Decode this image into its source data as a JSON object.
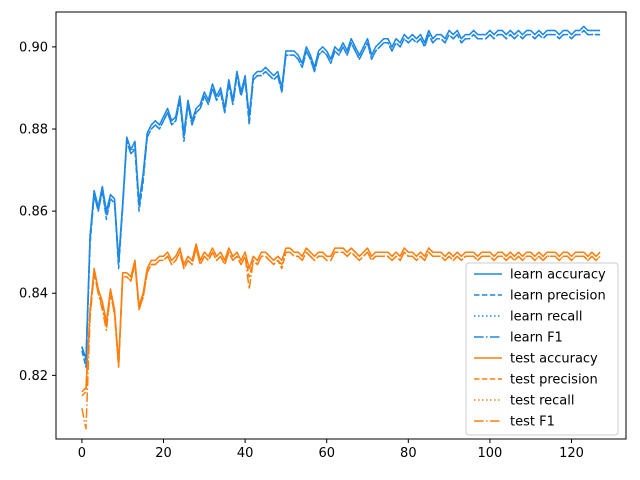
{
  "chart_data": {
    "type": "line",
    "title": "",
    "xlabel": "",
    "ylabel": "",
    "xlim": [
      -6.35,
      133.35
    ],
    "ylim": [
      0.8045,
      0.9085
    ],
    "xticks": [
      0,
      20,
      40,
      60,
      80,
      100,
      120
    ],
    "yticks": [
      0.82,
      0.84,
      0.86,
      0.88,
      0.9
    ],
    "ytick_labels": [
      "0.82",
      "0.84",
      "0.86",
      "0.88",
      "0.90"
    ],
    "grid": false,
    "legend_position": "lower-right",
    "colors": {
      "learn": "#1e88e5",
      "test": "#ff7f0e"
    },
    "series": [
      {
        "name": "learn accuracy",
        "group": "learn",
        "style": "solid",
        "values": [
          0.827,
          0.824,
          0.854,
          0.865,
          0.861,
          0.866,
          0.86,
          0.864,
          0.863,
          0.848,
          0.862,
          0.878,
          0.875,
          0.877,
          0.862,
          0.869,
          0.879,
          0.881,
          0.882,
          0.881,
          0.883,
          0.885,
          0.882,
          0.883,
          0.888,
          0.879,
          0.887,
          0.882,
          0.885,
          0.886,
          0.889,
          0.887,
          0.891,
          0.888,
          0.89,
          0.885,
          0.892,
          0.887,
          0.894,
          0.889,
          0.893,
          0.883,
          0.893,
          0.894,
          0.894,
          0.895,
          0.894,
          0.893,
          0.894,
          0.89,
          0.899,
          0.899,
          0.899,
          0.898,
          0.896,
          0.9,
          0.898,
          0.895,
          0.899,
          0.9,
          0.899,
          0.897,
          0.9,
          0.899,
          0.901,
          0.899,
          0.902,
          0.9,
          0.898,
          0.9,
          0.902,
          0.898,
          0.9,
          0.901,
          0.902,
          0.902,
          0.9,
          0.902,
          0.901,
          0.903,
          0.902,
          0.903,
          0.902,
          0.903,
          0.901,
          0.904,
          0.902,
          0.903,
          0.903,
          0.902,
          0.904,
          0.903,
          0.904,
          0.902,
          0.903,
          0.903,
          0.904,
          0.903,
          0.903,
          0.903,
          0.904,
          0.903,
          0.904,
          0.904,
          0.903,
          0.904,
          0.903,
          0.904,
          0.903,
          0.904,
          0.904,
          0.903,
          0.904,
          0.903,
          0.904,
          0.904,
          0.904,
          0.903,
          0.904,
          0.904,
          0.903,
          0.904,
          0.904,
          0.905,
          0.904,
          0.904,
          0.904,
          0.904
        ]
      },
      {
        "name": "learn precision",
        "group": "learn",
        "style": "dashed",
        "values": [
          0.826,
          0.822,
          0.852,
          0.864,
          0.86,
          0.865,
          0.858,
          0.863,
          0.862,
          0.846,
          0.861,
          0.877,
          0.874,
          0.875,
          0.86,
          0.867,
          0.878,
          0.88,
          0.881,
          0.88,
          0.882,
          0.884,
          0.881,
          0.882,
          0.887,
          0.877,
          0.886,
          0.881,
          0.884,
          0.885,
          0.888,
          0.886,
          0.89,
          0.887,
          0.889,
          0.884,
          0.891,
          0.886,
          0.893,
          0.888,
          0.892,
          0.881,
          0.892,
          0.893,
          0.893,
          0.894,
          0.893,
          0.892,
          0.893,
          0.889,
          0.898,
          0.898,
          0.898,
          0.897,
          0.895,
          0.899,
          0.897,
          0.894,
          0.898,
          0.899,
          0.898,
          0.896,
          0.899,
          0.898,
          0.9,
          0.898,
          0.901,
          0.899,
          0.897,
          0.899,
          0.901,
          0.897,
          0.899,
          0.9,
          0.901,
          0.901,
          0.899,
          0.901,
          0.9,
          0.902,
          0.901,
          0.902,
          0.901,
          0.902,
          0.9,
          0.903,
          0.901,
          0.902,
          0.902,
          0.901,
          0.903,
          0.902,
          0.903,
          0.901,
          0.902,
          0.902,
          0.903,
          0.902,
          0.902,
          0.902,
          0.903,
          0.902,
          0.903,
          0.903,
          0.902,
          0.903,
          0.902,
          0.903,
          0.902,
          0.903,
          0.903,
          0.902,
          0.903,
          0.902,
          0.903,
          0.903,
          0.903,
          0.902,
          0.903,
          0.903,
          0.902,
          0.903,
          0.903,
          0.904,
          0.903,
          0.903,
          0.903,
          0.903
        ]
      },
      {
        "name": "learn recall",
        "group": "learn",
        "style": "dotted",
        "values": [
          0.827,
          0.824,
          0.854,
          0.865,
          0.861,
          0.866,
          0.86,
          0.864,
          0.863,
          0.848,
          0.862,
          0.878,
          0.875,
          0.877,
          0.862,
          0.869,
          0.879,
          0.881,
          0.882,
          0.881,
          0.883,
          0.885,
          0.882,
          0.883,
          0.888,
          0.879,
          0.887,
          0.882,
          0.885,
          0.886,
          0.889,
          0.887,
          0.891,
          0.888,
          0.89,
          0.885,
          0.892,
          0.887,
          0.894,
          0.889,
          0.893,
          0.883,
          0.893,
          0.894,
          0.894,
          0.895,
          0.894,
          0.893,
          0.894,
          0.89,
          0.899,
          0.899,
          0.899,
          0.898,
          0.896,
          0.9,
          0.898,
          0.895,
          0.899,
          0.9,
          0.899,
          0.897,
          0.9,
          0.899,
          0.901,
          0.899,
          0.902,
          0.9,
          0.898,
          0.9,
          0.902,
          0.898,
          0.9,
          0.901,
          0.902,
          0.902,
          0.9,
          0.902,
          0.901,
          0.903,
          0.902,
          0.903,
          0.902,
          0.903,
          0.901,
          0.904,
          0.902,
          0.903,
          0.903,
          0.902,
          0.904,
          0.903,
          0.904,
          0.902,
          0.903,
          0.903,
          0.904,
          0.903,
          0.903,
          0.903,
          0.904,
          0.903,
          0.904,
          0.904,
          0.903,
          0.904,
          0.903,
          0.904,
          0.903,
          0.904,
          0.904,
          0.903,
          0.904,
          0.903,
          0.904,
          0.904,
          0.904,
          0.903,
          0.904,
          0.904,
          0.903,
          0.904,
          0.904,
          0.905,
          0.904,
          0.904,
          0.904,
          0.904
        ]
      },
      {
        "name": "learn F1",
        "group": "learn",
        "style": "dashdot",
        "values": [
          0.827,
          0.823,
          0.853,
          0.864,
          0.86,
          0.865,
          0.859,
          0.863,
          0.862,
          0.847,
          0.861,
          0.877,
          0.874,
          0.876,
          0.861,
          0.868,
          0.878,
          0.88,
          0.881,
          0.88,
          0.882,
          0.884,
          0.881,
          0.882,
          0.887,
          0.878,
          0.886,
          0.881,
          0.884,
          0.885,
          0.888,
          0.886,
          0.89,
          0.887,
          0.889,
          0.884,
          0.891,
          0.886,
          0.893,
          0.888,
          0.892,
          0.882,
          0.892,
          0.893,
          0.893,
          0.894,
          0.893,
          0.892,
          0.893,
          0.889,
          0.898,
          0.898,
          0.898,
          0.897,
          0.895,
          0.899,
          0.897,
          0.894,
          0.898,
          0.899,
          0.898,
          0.896,
          0.899,
          0.898,
          0.9,
          0.898,
          0.901,
          0.899,
          0.897,
          0.899,
          0.901,
          0.897,
          0.899,
          0.9,
          0.901,
          0.901,
          0.899,
          0.901,
          0.9,
          0.902,
          0.901,
          0.902,
          0.901,
          0.902,
          0.9,
          0.903,
          0.901,
          0.902,
          0.902,
          0.901,
          0.903,
          0.902,
          0.903,
          0.901,
          0.902,
          0.902,
          0.903,
          0.902,
          0.902,
          0.902,
          0.903,
          0.902,
          0.903,
          0.903,
          0.902,
          0.903,
          0.902,
          0.903,
          0.902,
          0.903,
          0.903,
          0.902,
          0.903,
          0.902,
          0.903,
          0.903,
          0.903,
          0.902,
          0.903,
          0.903,
          0.902,
          0.903,
          0.903,
          0.904,
          0.903,
          0.903,
          0.903,
          0.903
        ]
      },
      {
        "name": "test accuracy",
        "group": "test",
        "style": "solid",
        "values": [
          0.816,
          0.817,
          0.836,
          0.846,
          0.841,
          0.838,
          0.833,
          0.841,
          0.836,
          0.823,
          0.845,
          0.845,
          0.844,
          0.848,
          0.837,
          0.84,
          0.846,
          0.848,
          0.848,
          0.849,
          0.849,
          0.85,
          0.848,
          0.849,
          0.851,
          0.847,
          0.849,
          0.848,
          0.852,
          0.848,
          0.85,
          0.849,
          0.851,
          0.849,
          0.85,
          0.848,
          0.851,
          0.849,
          0.85,
          0.848,
          0.85,
          0.846,
          0.849,
          0.848,
          0.85,
          0.85,
          0.849,
          0.848,
          0.849,
          0.848,
          0.851,
          0.851,
          0.85,
          0.85,
          0.849,
          0.851,
          0.85,
          0.849,
          0.85,
          0.85,
          0.849,
          0.849,
          0.851,
          0.851,
          0.851,
          0.85,
          0.851,
          0.85,
          0.849,
          0.85,
          0.851,
          0.849,
          0.85,
          0.85,
          0.85,
          0.85,
          0.849,
          0.85,
          0.849,
          0.851,
          0.85,
          0.85,
          0.849,
          0.85,
          0.849,
          0.851,
          0.85,
          0.85,
          0.85,
          0.849,
          0.85,
          0.849,
          0.85,
          0.849,
          0.85,
          0.85,
          0.85,
          0.849,
          0.85,
          0.85,
          0.85,
          0.849,
          0.85,
          0.85,
          0.849,
          0.85,
          0.849,
          0.85,
          0.849,
          0.85,
          0.85,
          0.849,
          0.85,
          0.849,
          0.85,
          0.85,
          0.85,
          0.849,
          0.85,
          0.85,
          0.849,
          0.85,
          0.85,
          0.85,
          0.849,
          0.85,
          0.849,
          0.85
        ]
      },
      {
        "name": "test precision",
        "group": "test",
        "style": "dashed",
        "values": [
          0.815,
          0.816,
          0.835,
          0.845,
          0.84,
          0.837,
          0.832,
          0.84,
          0.835,
          0.822,
          0.844,
          0.844,
          0.843,
          0.847,
          0.836,
          0.839,
          0.845,
          0.847,
          0.847,
          0.848,
          0.848,
          0.849,
          0.847,
          0.848,
          0.85,
          0.846,
          0.848,
          0.847,
          0.851,
          0.847,
          0.849,
          0.848,
          0.85,
          0.848,
          0.849,
          0.847,
          0.85,
          0.848,
          0.849,
          0.847,
          0.849,
          0.844,
          0.848,
          0.847,
          0.849,
          0.849,
          0.848,
          0.847,
          0.848,
          0.846,
          0.85,
          0.85,
          0.849,
          0.849,
          0.848,
          0.85,
          0.849,
          0.848,
          0.849,
          0.849,
          0.848,
          0.848,
          0.85,
          0.85,
          0.85,
          0.849,
          0.85,
          0.849,
          0.848,
          0.849,
          0.85,
          0.848,
          0.849,
          0.849,
          0.849,
          0.849,
          0.848,
          0.849,
          0.848,
          0.85,
          0.849,
          0.849,
          0.848,
          0.849,
          0.848,
          0.85,
          0.849,
          0.849,
          0.849,
          0.848,
          0.849,
          0.848,
          0.849,
          0.848,
          0.849,
          0.849,
          0.849,
          0.848,
          0.849,
          0.849,
          0.849,
          0.848,
          0.849,
          0.849,
          0.848,
          0.849,
          0.848,
          0.849,
          0.848,
          0.849,
          0.849,
          0.848,
          0.849,
          0.848,
          0.849,
          0.849,
          0.849,
          0.848,
          0.849,
          0.849,
          0.848,
          0.849,
          0.849,
          0.849,
          0.848,
          0.849,
          0.848,
          0.849
        ]
      },
      {
        "name": "test recall",
        "group": "test",
        "style": "dotted",
        "values": [
          0.816,
          0.817,
          0.836,
          0.846,
          0.841,
          0.838,
          0.833,
          0.841,
          0.836,
          0.823,
          0.845,
          0.845,
          0.844,
          0.848,
          0.837,
          0.84,
          0.846,
          0.848,
          0.848,
          0.849,
          0.849,
          0.85,
          0.848,
          0.849,
          0.851,
          0.847,
          0.849,
          0.848,
          0.852,
          0.848,
          0.85,
          0.849,
          0.851,
          0.849,
          0.85,
          0.848,
          0.851,
          0.849,
          0.85,
          0.848,
          0.85,
          0.846,
          0.849,
          0.848,
          0.85,
          0.85,
          0.849,
          0.848,
          0.849,
          0.848,
          0.851,
          0.851,
          0.85,
          0.85,
          0.849,
          0.851,
          0.85,
          0.849,
          0.85,
          0.85,
          0.849,
          0.849,
          0.851,
          0.851,
          0.851,
          0.85,
          0.851,
          0.85,
          0.849,
          0.85,
          0.851,
          0.849,
          0.85,
          0.85,
          0.85,
          0.85,
          0.849,
          0.85,
          0.849,
          0.851,
          0.85,
          0.85,
          0.849,
          0.85,
          0.849,
          0.851,
          0.85,
          0.85,
          0.85,
          0.849,
          0.85,
          0.849,
          0.85,
          0.849,
          0.85,
          0.85,
          0.85,
          0.849,
          0.85,
          0.85,
          0.85,
          0.849,
          0.85,
          0.85,
          0.849,
          0.85,
          0.849,
          0.85,
          0.849,
          0.85,
          0.85,
          0.849,
          0.85,
          0.849,
          0.85,
          0.85,
          0.85,
          0.849,
          0.85,
          0.85,
          0.849,
          0.85,
          0.85,
          0.85,
          0.849,
          0.85,
          0.849,
          0.85
        ]
      },
      {
        "name": "test F1",
        "group": "test",
        "style": "dashdot",
        "values": [
          0.812,
          0.807,
          0.834,
          0.845,
          0.84,
          0.836,
          0.831,
          0.84,
          0.835,
          0.822,
          0.844,
          0.844,
          0.843,
          0.847,
          0.836,
          0.839,
          0.845,
          0.847,
          0.847,
          0.848,
          0.848,
          0.849,
          0.847,
          0.848,
          0.85,
          0.846,
          0.848,
          0.847,
          0.851,
          0.847,
          0.849,
          0.848,
          0.85,
          0.848,
          0.849,
          0.847,
          0.85,
          0.848,
          0.849,
          0.847,
          0.849,
          0.841,
          0.848,
          0.847,
          0.849,
          0.849,
          0.848,
          0.847,
          0.848,
          0.847,
          0.85,
          0.85,
          0.849,
          0.849,
          0.848,
          0.85,
          0.849,
          0.848,
          0.849,
          0.849,
          0.848,
          0.848,
          0.85,
          0.85,
          0.85,
          0.849,
          0.85,
          0.849,
          0.848,
          0.849,
          0.85,
          0.848,
          0.849,
          0.849,
          0.849,
          0.849,
          0.848,
          0.849,
          0.848,
          0.85,
          0.849,
          0.849,
          0.848,
          0.849,
          0.848,
          0.85,
          0.849,
          0.849,
          0.849,
          0.848,
          0.849,
          0.848,
          0.849,
          0.848,
          0.849,
          0.849,
          0.849,
          0.848,
          0.849,
          0.849,
          0.849,
          0.848,
          0.849,
          0.849,
          0.848,
          0.849,
          0.848,
          0.849,
          0.848,
          0.849,
          0.849,
          0.848,
          0.849,
          0.848,
          0.849,
          0.849,
          0.849,
          0.848,
          0.849,
          0.849,
          0.848,
          0.849,
          0.849,
          0.849,
          0.848,
          0.849,
          0.848,
          0.849
        ]
      }
    ]
  }
}
